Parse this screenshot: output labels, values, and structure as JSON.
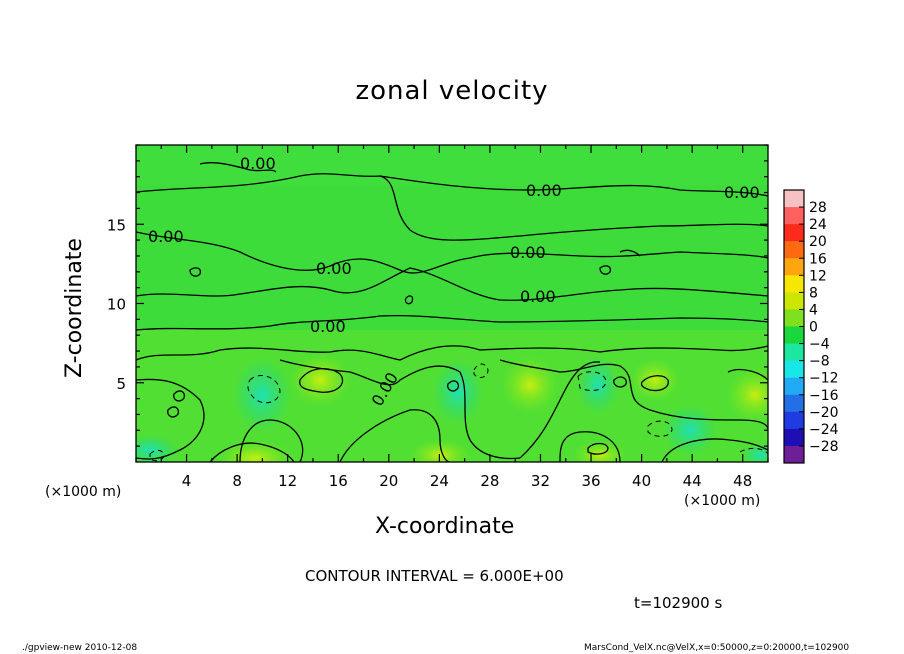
{
  "chart_data": {
    "type": "heatmap",
    "title": "zonal velocity",
    "xlabel": "X-coordinate",
    "ylabel": "Z-coordinate",
    "x_unit_label": "(×1000 m)",
    "x_ticks": [
      4,
      8,
      12,
      16,
      20,
      24,
      28,
      32,
      36,
      40,
      44,
      48
    ],
    "y_ticks": [
      5,
      10,
      15
    ],
    "xlim": [
      0,
      50
    ],
    "ylim": [
      0,
      20
    ],
    "contour_label": "0.00",
    "colorbar": {
      "labels": [
        "28",
        "24",
        "20",
        "16",
        "12",
        "8",
        "4",
        "0",
        "−4",
        "−8",
        "−12",
        "−16",
        "−20",
        "−24",
        "−28"
      ],
      "colors": [
        "#f7c1c1",
        "#ff6060",
        "#ff2a1e",
        "#ff6a10",
        "#ffa60f",
        "#f7e600",
        "#cce600",
        "#7fe020",
        "#19d73c",
        "#1de6a0",
        "#19e6e6",
        "#23aaf5",
        "#2370e6",
        "#1e3ce1",
        "#1e0fb4",
        "#6e1e96"
      ]
    },
    "contour_interval_text": "CONTOUR INTERVAL = 6.000E+00",
    "time_text": "t=102900 s"
  },
  "footer": {
    "left": "./gpview-new 2010-12-08",
    "right": "MarsCond_VelX.nc@VelX,x=0:50000,z=0:20000,t=102900"
  }
}
